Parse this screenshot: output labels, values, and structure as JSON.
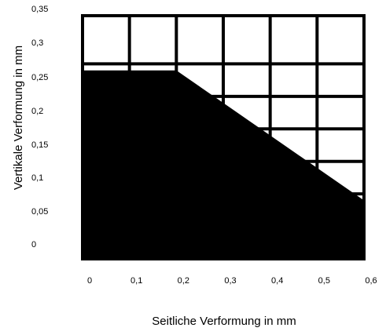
{
  "chart_data": {
    "type": "area",
    "title": "",
    "xlabel": "Seitliche Verformung in mm",
    "ylabel": "Vertikale Verformung in mm",
    "xlim": [
      0,
      0.6
    ],
    "ylim": [
      0,
      0.35
    ],
    "x_ticks": [
      "0",
      "0,1",
      "0,2",
      "0,3",
      "0,4",
      "0,5",
      "0,6"
    ],
    "y_ticks": [
      "0",
      "0,05",
      "0,1",
      "0,15",
      "0,2",
      "0,25",
      "0,3",
      "0,35"
    ],
    "grid": true,
    "fill_color": "#000000",
    "grid_color": "#000000",
    "background_color": "#ffffff",
    "series": [
      {
        "x": [
          0,
          0.2,
          0.6
        ],
        "y": [
          0.29,
          0.29,
          0.09
        ]
      }
    ]
  }
}
